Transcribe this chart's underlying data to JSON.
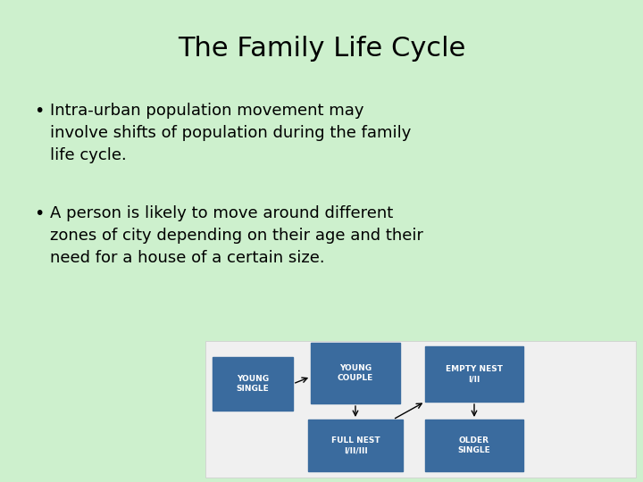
{
  "title": "The Family Life Cycle",
  "background_color": "#cdf0cd",
  "title_fontsize": 22,
  "title_color": "#000000",
  "bullet_points": [
    "Intra-urban population movement may\ninvolve shifts of population during the family\nlife cycle.",
    "A person is likely to move around different\nzones of city depending on their age and their\nneed for a house of a certain size."
  ],
  "bullet_fontsize": 13,
  "box_color": "#3a6b9e",
  "box_text_color": "#ffffff",
  "diagram_bg": "#f0f0f0",
  "diagram_border": "#cccccc"
}
